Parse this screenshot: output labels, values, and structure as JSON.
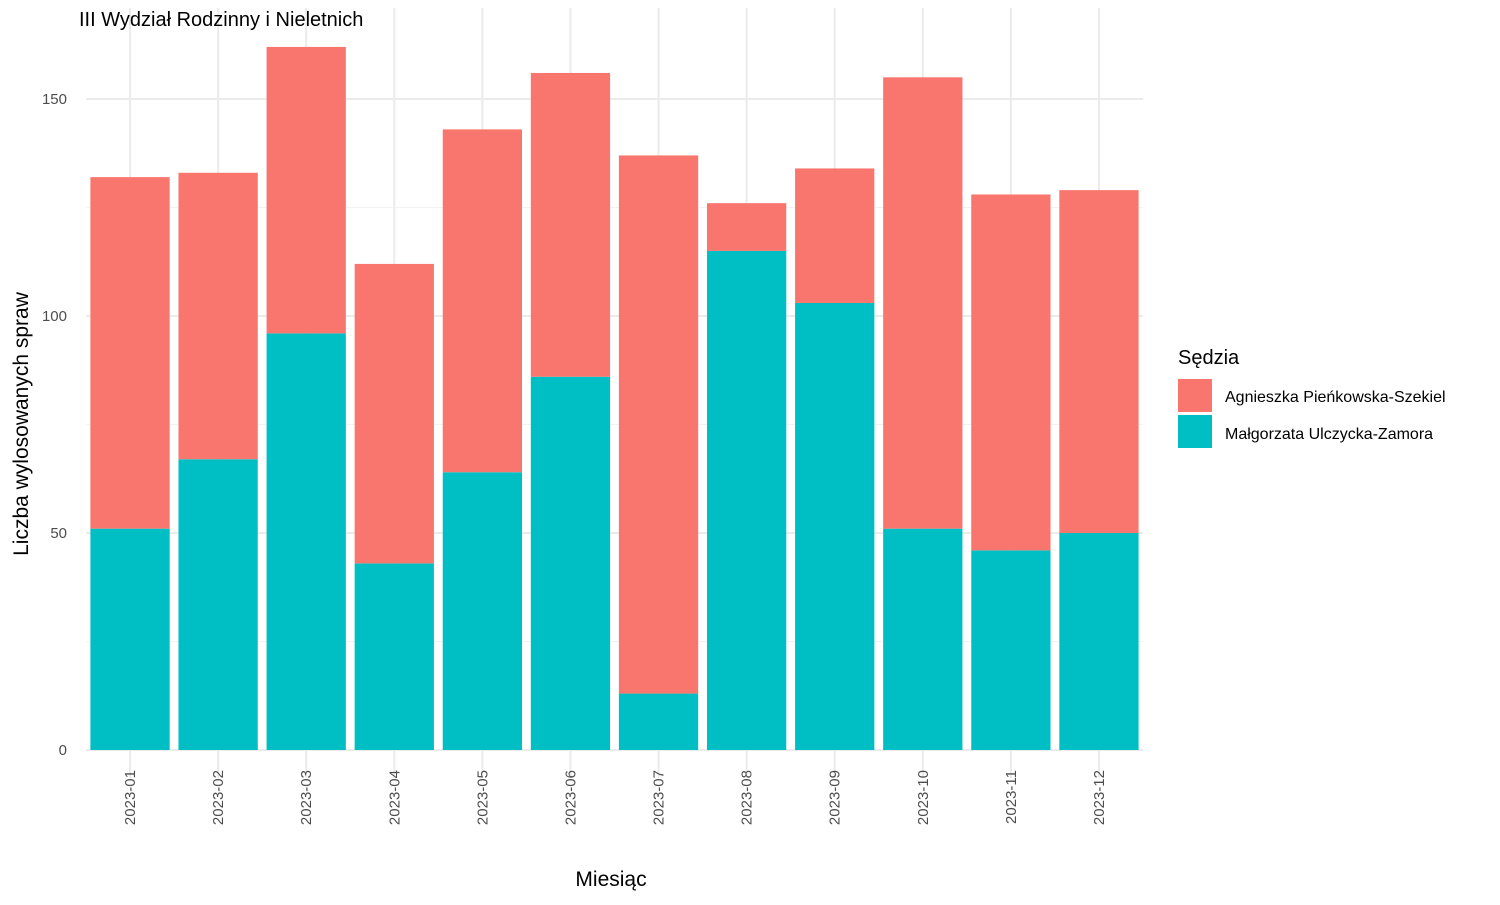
{
  "chart_data": {
    "type": "bar",
    "stacked": true,
    "title": "III Wydział Rodzinny i Nieletnich",
    "xlabel": "Miesiąc",
    "ylabel": "Liczba wylosowanych spraw",
    "categories": [
      "2023-01",
      "2023-02",
      "2023-03",
      "2023-04",
      "2023-05",
      "2023-06",
      "2023-07",
      "2023-08",
      "2023-09",
      "2023-10",
      "2023-11",
      "2023-12"
    ],
    "series": [
      {
        "name": "Małgorzata Ulczycka-Zamora",
        "color": "#00BFC4",
        "values": [
          51,
          67,
          96,
          43,
          64,
          86,
          13,
          115,
          103,
          51,
          46,
          50
        ]
      },
      {
        "name": "Agnieszka Pieńkowska-Szekiel",
        "color": "#F8766D",
        "values": [
          81,
          66,
          66,
          69,
          79,
          70,
          124,
          11,
          31,
          104,
          82,
          79
        ]
      }
    ],
    "ylim": [
      0,
      162
    ],
    "yticks": [
      0,
      50,
      100,
      150
    ],
    "grid": true,
    "legend": {
      "title": "Sędzia",
      "position": "right",
      "entries": [
        {
          "label": "Agnieszka Pieńkowska-Szekiel",
          "color": "#F8766D"
        },
        {
          "label": "Małgorzata Ulczycka-Zamora",
          "color": "#00BFC4"
        }
      ]
    }
  }
}
